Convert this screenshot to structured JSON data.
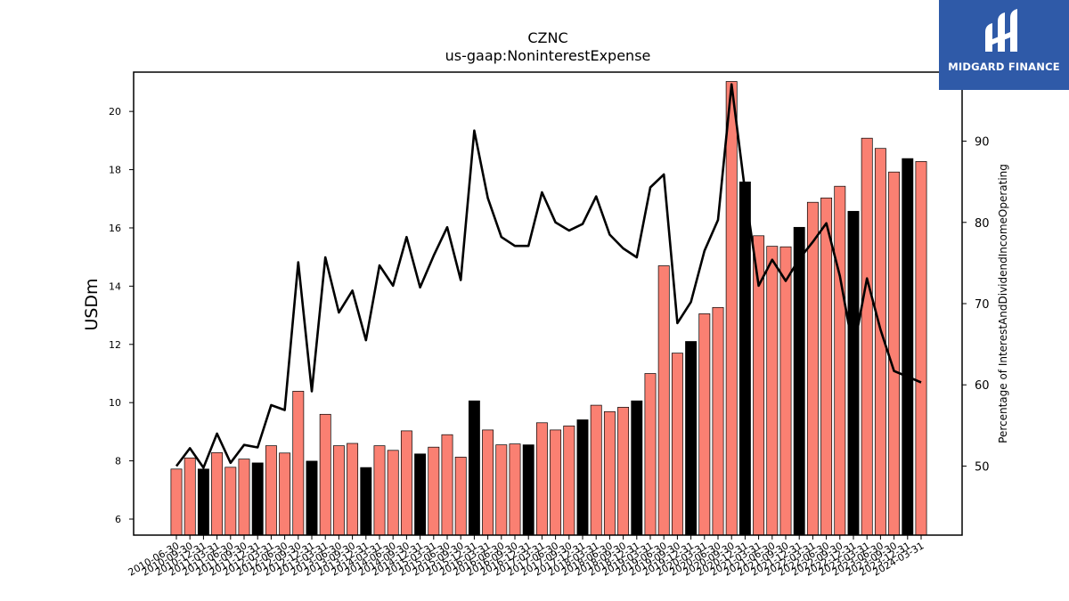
{
  "chart_data": {
    "type": "bar",
    "title": "CZNC",
    "subtitle": "us-gaap:NoninterestExpense",
    "ylabel": "USDm",
    "y2label": "Percentage of InterestAndDividendIncomeOperating",
    "ylim": [
      5.45,
      21.35
    ],
    "y2lim": [
      41.5,
      98.5
    ],
    "yticks": [
      6,
      8,
      10,
      12,
      14,
      16,
      18,
      20
    ],
    "y2ticks": [
      50,
      60,
      70,
      80,
      90
    ],
    "colors": {
      "quarter_bar": "#fa8072",
      "annual_bar": "#000000",
      "line": "#000000"
    },
    "categories": [
      "2010-06-30",
      "2010-09-30",
      "2010-12-31",
      "2011-03-31",
      "2011-06-30",
      "2011-09-30",
      "2011-12-31",
      "2012-03-31",
      "2012-06-30",
      "2012-09-30",
      "2012-12-31",
      "2013-03-31",
      "2013-06-30",
      "2013-09-30",
      "2013-12-31",
      "2014-03-31",
      "2014-06-30",
      "2014-09-30",
      "2014-12-31",
      "2015-03-31",
      "2015-06-30",
      "2015-09-30",
      "2015-12-31",
      "2016-03-31",
      "2016-06-30",
      "2016-09-30",
      "2016-12-31",
      "2017-03-31",
      "2017-06-30",
      "2017-09-30",
      "2017-12-31",
      "2018-03-31",
      "2018-06-30",
      "2018-09-30",
      "2018-12-31",
      "2019-03-31",
      "2019-06-30",
      "2019-09-30",
      "2019-12-31",
      "2020-03-31",
      "2020-06-30",
      "2020-09-30",
      "2020-12-31",
      "2021-03-31",
      "2021-06-30",
      "2021-09-30",
      "2021-12-31",
      "2022-03-31",
      "2022-06-30",
      "2022-09-30",
      "2022-12-31",
      "2023-03-31",
      "2023-06-30",
      "2023-09-30",
      "2023-12-31",
      "2024-03-31"
    ],
    "visible_tick_labels": [
      "2010-06-30",
      "2010-09-30",
      "2010-12-31",
      "2011-03-31",
      "2011-06-30",
      "2011-09-30",
      "2011-12-31",
      "2012-03-31",
      "2012-06-30",
      "2012-09-30",
      "2012-12-31",
      "2013-03-31",
      "2013-06-30",
      "2013-09-30",
      "2013-12-31",
      "2014-03-31",
      "2014-06-30",
      "2014-09-30",
      "2014-12-31",
      "2015-03-31",
      "2015-06-30",
      "2015-09-30",
      "2015-12-31",
      "2016-03-31",
      "2016-06-30",
      "2016-09-30",
      "2016-12-31",
      "2017-03-31",
      "2017-06-30",
      "2017-09-30",
      "2017-12-31",
      "2018-03-31",
      "2018-06-30",
      "2018-09-30",
      "2018-12-31",
      "2019-03-31",
      "2019-06-30",
      "2019-09-30",
      "2019-12-31",
      "2020-03-31",
      "2020-06-30",
      "2020-09-30",
      "2020-12-31",
      "2021-03-31",
      "2021-06-30",
      "2021-09-30",
      "2021-12-31",
      "2022-03-31",
      "2022-06-30",
      "2022-09-30",
      "2022-12-31",
      "2023-03-31",
      "2023-06-30",
      "2023-09-30",
      "2023-12-31",
      "2024-03-31"
    ],
    "series": [
      {
        "type": "bar",
        "axis": "left",
        "values": [
          7.72,
          8.1,
          7.72,
          8.28,
          7.78,
          8.06,
          7.93,
          8.52,
          8.27,
          10.39,
          7.99,
          9.6,
          8.52,
          8.6,
          7.77,
          8.52,
          8.36,
          9.03,
          8.24,
          8.47,
          8.9,
          8.13,
          10.06,
          9.06,
          8.55,
          8.58,
          8.55,
          9.31,
          9.06,
          9.2,
          9.41,
          9.91,
          9.69,
          9.84,
          10.06,
          11.0,
          14.7,
          11.7,
          12.1,
          13.05,
          13.27,
          21.03,
          17.58,
          15.73,
          15.37,
          15.35,
          16.02,
          16.88,
          17.03,
          17.43,
          16.57,
          19.08,
          18.73,
          17.92,
          18.38,
          18.28
        ],
        "annual": [
          false,
          false,
          true,
          false,
          false,
          false,
          true,
          false,
          false,
          false,
          true,
          false,
          false,
          false,
          true,
          false,
          false,
          false,
          true,
          false,
          false,
          false,
          true,
          false,
          false,
          false,
          true,
          false,
          false,
          false,
          true,
          false,
          false,
          false,
          true,
          false,
          false,
          false,
          true,
          false,
          false,
          false,
          true,
          false,
          false,
          false,
          true,
          false,
          false,
          false,
          true,
          false,
          false,
          false,
          true,
          false
        ]
      },
      {
        "type": "line",
        "axis": "right",
        "values": [
          50.0,
          52.2,
          49.8,
          54.0,
          50.4,
          52.6,
          52.3,
          57.5,
          56.9,
          75.1,
          59.2,
          75.7,
          68.9,
          71.6,
          65.5,
          74.7,
          72.2,
          78.2,
          72.0,
          75.9,
          79.4,
          72.9,
          91.3,
          83.0,
          78.2,
          77.1,
          77.1,
          83.7,
          80.0,
          79.0,
          79.8,
          83.2,
          78.5,
          76.8,
          75.7,
          84.3,
          85.9,
          67.6,
          70.2,
          76.5,
          80.3,
          97.0,
          83.8,
          72.2,
          75.4,
          72.8,
          75.5,
          77.6,
          79.9,
          73.4,
          64.2,
          73.1,
          66.8,
          61.7,
          61.0,
          60.3
        ]
      }
    ]
  },
  "logo": {
    "text": "MIDGARD FINANCE"
  }
}
